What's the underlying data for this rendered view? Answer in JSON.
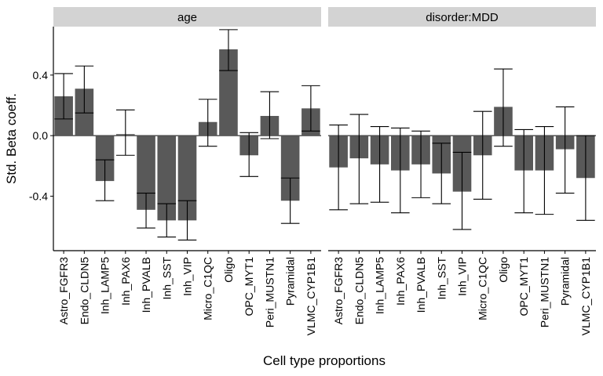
{
  "chart_data": {
    "type": "bar",
    "xlabel": "Cell type proportions",
    "ylabel": "Std. Beta coeff.",
    "ylim": [
      -0.76,
      0.72
    ],
    "yticks": [
      -0.4,
      0.0,
      0.4
    ],
    "ytick_labels": [
      "-0.4",
      "0.0",
      "0.4"
    ],
    "grid": false,
    "zero_line": true,
    "colors": {
      "bar": "#595959",
      "strip": "#d3d3d3",
      "axis": "#000000"
    },
    "categories": [
      "Astro_FGFR3",
      "Endo_CLDN5",
      "Inh_LAMP5",
      "Inh_PAX6",
      "Inh_PVALB",
      "Inh_SST",
      "Inh_VIP",
      "Micro_C1QC",
      "Oligo",
      "OPC_MYT1",
      "Peri_MUSTN1",
      "Pyramidal",
      "VLMC_CYP1B1"
    ],
    "facets": [
      {
        "label": "age",
        "values": [
          0.26,
          0.31,
          -0.3,
          0.01,
          -0.49,
          -0.56,
          -0.56,
          0.09,
          0.57,
          -0.13,
          0.13,
          -0.43,
          0.18
        ],
        "err_low": [
          0.11,
          0.15,
          -0.43,
          -0.13,
          -0.61,
          -0.67,
          -0.69,
          -0.07,
          0.43,
          -0.27,
          -0.02,
          -0.58,
          0.03
        ],
        "err_high": [
          0.41,
          0.46,
          -0.16,
          0.17,
          -0.38,
          -0.45,
          -0.43,
          0.24,
          0.7,
          0.02,
          0.29,
          -0.28,
          0.33
        ]
      },
      {
        "label": "disorder:MDD",
        "values": [
          -0.21,
          -0.15,
          -0.19,
          -0.23,
          -0.19,
          -0.25,
          -0.37,
          -0.13,
          0.19,
          -0.23,
          -0.23,
          -0.09,
          -0.28
        ],
        "err_low": [
          -0.49,
          -0.45,
          -0.44,
          -0.51,
          -0.41,
          -0.45,
          -0.62,
          -0.42,
          -0.07,
          -0.51,
          -0.52,
          -0.38,
          -0.56
        ],
        "err_high": [
          0.07,
          0.14,
          0.06,
          0.05,
          0.03,
          -0.05,
          -0.11,
          0.16,
          0.44,
          0.04,
          0.06,
          0.19,
          0.0
        ]
      }
    ]
  }
}
